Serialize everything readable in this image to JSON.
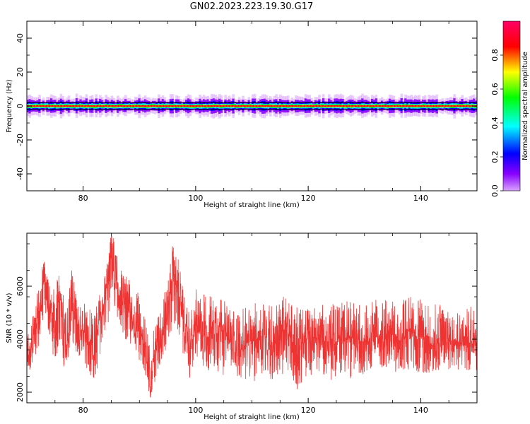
{
  "title": "GN02.2023.223.19.30.G17",
  "chart_data": [
    {
      "type": "heatmap",
      "xlabel": "Height of straight line (km)",
      "ylabel": "Frequency (Hz)",
      "xlim": [
        70,
        150
      ],
      "ylim": [
        -50,
        50
      ],
      "xticks": [
        80,
        100,
        120,
        140
      ],
      "yticks": [
        -40,
        -20,
        0,
        20,
        40
      ],
      "ridge_frequency_hz": 0,
      "reference_lines_hz": [
        -2,
        2
      ],
      "colorbar": {
        "label": "Normalized spectral amplitude",
        "range": [
          0,
          1
        ],
        "ticks": [
          0.0,
          0.2,
          0.4,
          0.6,
          0.8
        ],
        "colormap": [
          "#d9a3ff",
          "#8800ff",
          "#0000ff",
          "#00ffff",
          "#00ff00",
          "#ffff00",
          "#ff0000",
          "#ff0066"
        ]
      }
    },
    {
      "type": "line",
      "xlabel": "Height of straight line (km)",
      "ylabel": "SNR (10 * v/v)",
      "xlim": [
        70,
        150
      ],
      "ylim": [
        1600,
        8000
      ],
      "xticks": [
        80,
        100,
        120,
        140
      ],
      "yticks": [
        2000,
        4000,
        6000
      ],
      "color": "#ee3333",
      "envelope": {
        "x": [
          70,
          71,
          72,
          73,
          74,
          75,
          76,
          77,
          78,
          79,
          80,
          81,
          82,
          83,
          84,
          85,
          86,
          87,
          88,
          89,
          90,
          91,
          92,
          93,
          94,
          95,
          96,
          97,
          98,
          99,
          100,
          102,
          104,
          106,
          108,
          110,
          112,
          114,
          116,
          118,
          120,
          122,
          124,
          126,
          128,
          130,
          132,
          134,
          136,
          138,
          140,
          142,
          144,
          146,
          148,
          150
        ],
        "y": [
          3300,
          3800,
          4900,
          6100,
          5200,
          4600,
          5600,
          3700,
          5300,
          4400,
          4300,
          3900,
          3500,
          4600,
          5600,
          7500,
          6200,
          5400,
          5100,
          4600,
          4600,
          3500,
          2700,
          3700,
          4300,
          5000,
          6600,
          5700,
          4300,
          3600,
          4500,
          4100,
          4700,
          3900,
          3600,
          3900,
          4200,
          3800,
          4300,
          3700,
          4000,
          4100,
          3700,
          4100,
          4000,
          3900,
          4200,
          4000,
          3900,
          4300,
          4100,
          3800,
          3900,
          4000,
          3800,
          4000
        ],
        "min": [
          2600,
          3000,
          3600,
          4800,
          4000,
          3100,
          2200,
          2900,
          3900,
          3300,
          3300,
          2600,
          2500,
          3100,
          4200,
          5000,
          4800,
          4200,
          3800,
          3400,
          3200,
          2300,
          1700,
          2600,
          3200,
          3700,
          4400,
          4100,
          3200,
          2500,
          3300,
          2800,
          2600,
          2700,
          2500,
          2300,
          2600,
          2400,
          2600,
          2100,
          2600,
          2800,
          2400,
          2600,
          2500,
          2700,
          2900,
          2900,
          2700,
          2800,
          2700,
          2700,
          2800,
          2900,
          2700,
          2800
        ],
        "max": [
          4100,
          4900,
          6000,
          7100,
          6300,
          5900,
          7000,
          4800,
          6700,
          5300,
          5500,
          5200,
          4900,
          6000,
          6600,
          8000,
          7600,
          6500,
          6400,
          5700,
          5800,
          4800,
          3800,
          4800,
          5500,
          6200,
          7700,
          7000,
          5500,
          4900,
          5900,
          5700,
          5800,
          5200,
          5100,
          5300,
          5600,
          5300,
          5700,
          5200,
          5200,
          5300,
          5300,
          5500,
          5400,
          5300,
          5500,
          5500,
          5400,
          5700,
          5500,
          5300,
          5400,
          5300,
          5200,
          5300
        ]
      }
    }
  ]
}
